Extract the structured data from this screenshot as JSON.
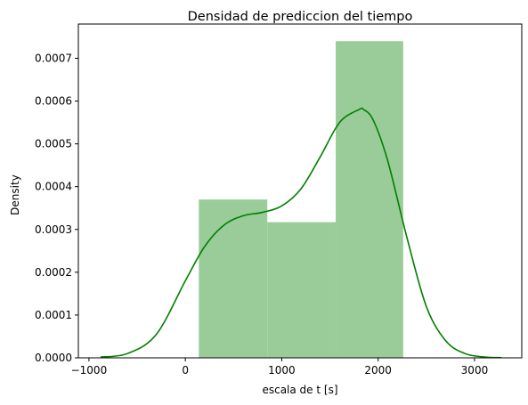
{
  "chart_data": {
    "type": "histogram-kde",
    "title": "Densidad de prediccion del tiempo",
    "xlabel": "escala de t [s]",
    "ylabel": "Density",
    "xlim": [
      -1110,
      3490
    ],
    "ylim": [
      0,
      0.00078
    ],
    "xticks": [
      -1000,
      0,
      1000,
      2000,
      3000
    ],
    "xtick_labels": [
      "−1000",
      "0",
      "1000",
      "2000",
      "3000"
    ],
    "yticks": [
      0,
      0.0001,
      0.0002,
      0.0003,
      0.0004,
      0.0005,
      0.0006,
      0.0007
    ],
    "ytick_labels": [
      "0.0000",
      "0.0001",
      "0.0002",
      "0.0003",
      "0.0004",
      "0.0005",
      "0.0006",
      "0.0007"
    ],
    "grid": false,
    "bar_color": "#99cc99",
    "line_color": "#008000",
    "histogram": [
      {
        "x0": 140,
        "x1": 850,
        "density": 0.00037
      },
      {
        "x0": 850,
        "x1": 1560,
        "density": 0.000317
      },
      {
        "x0": 1560,
        "x1": 2260,
        "density": 0.00074
      }
    ],
    "kde": {
      "x": [
        -880,
        -600,
        -300,
        0,
        200,
        400,
        600,
        800,
        1000,
        1200,
        1400,
        1600,
        1800,
        1850,
        1950,
        2100,
        2300,
        2500,
        2700,
        2900,
        3100,
        3280
      ],
      "y": [
        2e-06,
        1e-05,
        5.5e-05,
        0.00018,
        0.00026,
        0.00031,
        0.000332,
        0.00034,
        0.000355,
        0.000395,
        0.00047,
        0.00055,
        0.00058,
        0.00058,
        0.000555,
        0.00046,
        0.00028,
        0.00012,
        4e-05,
        1e-05,
        2e-06,
        5e-07
      ]
    }
  }
}
